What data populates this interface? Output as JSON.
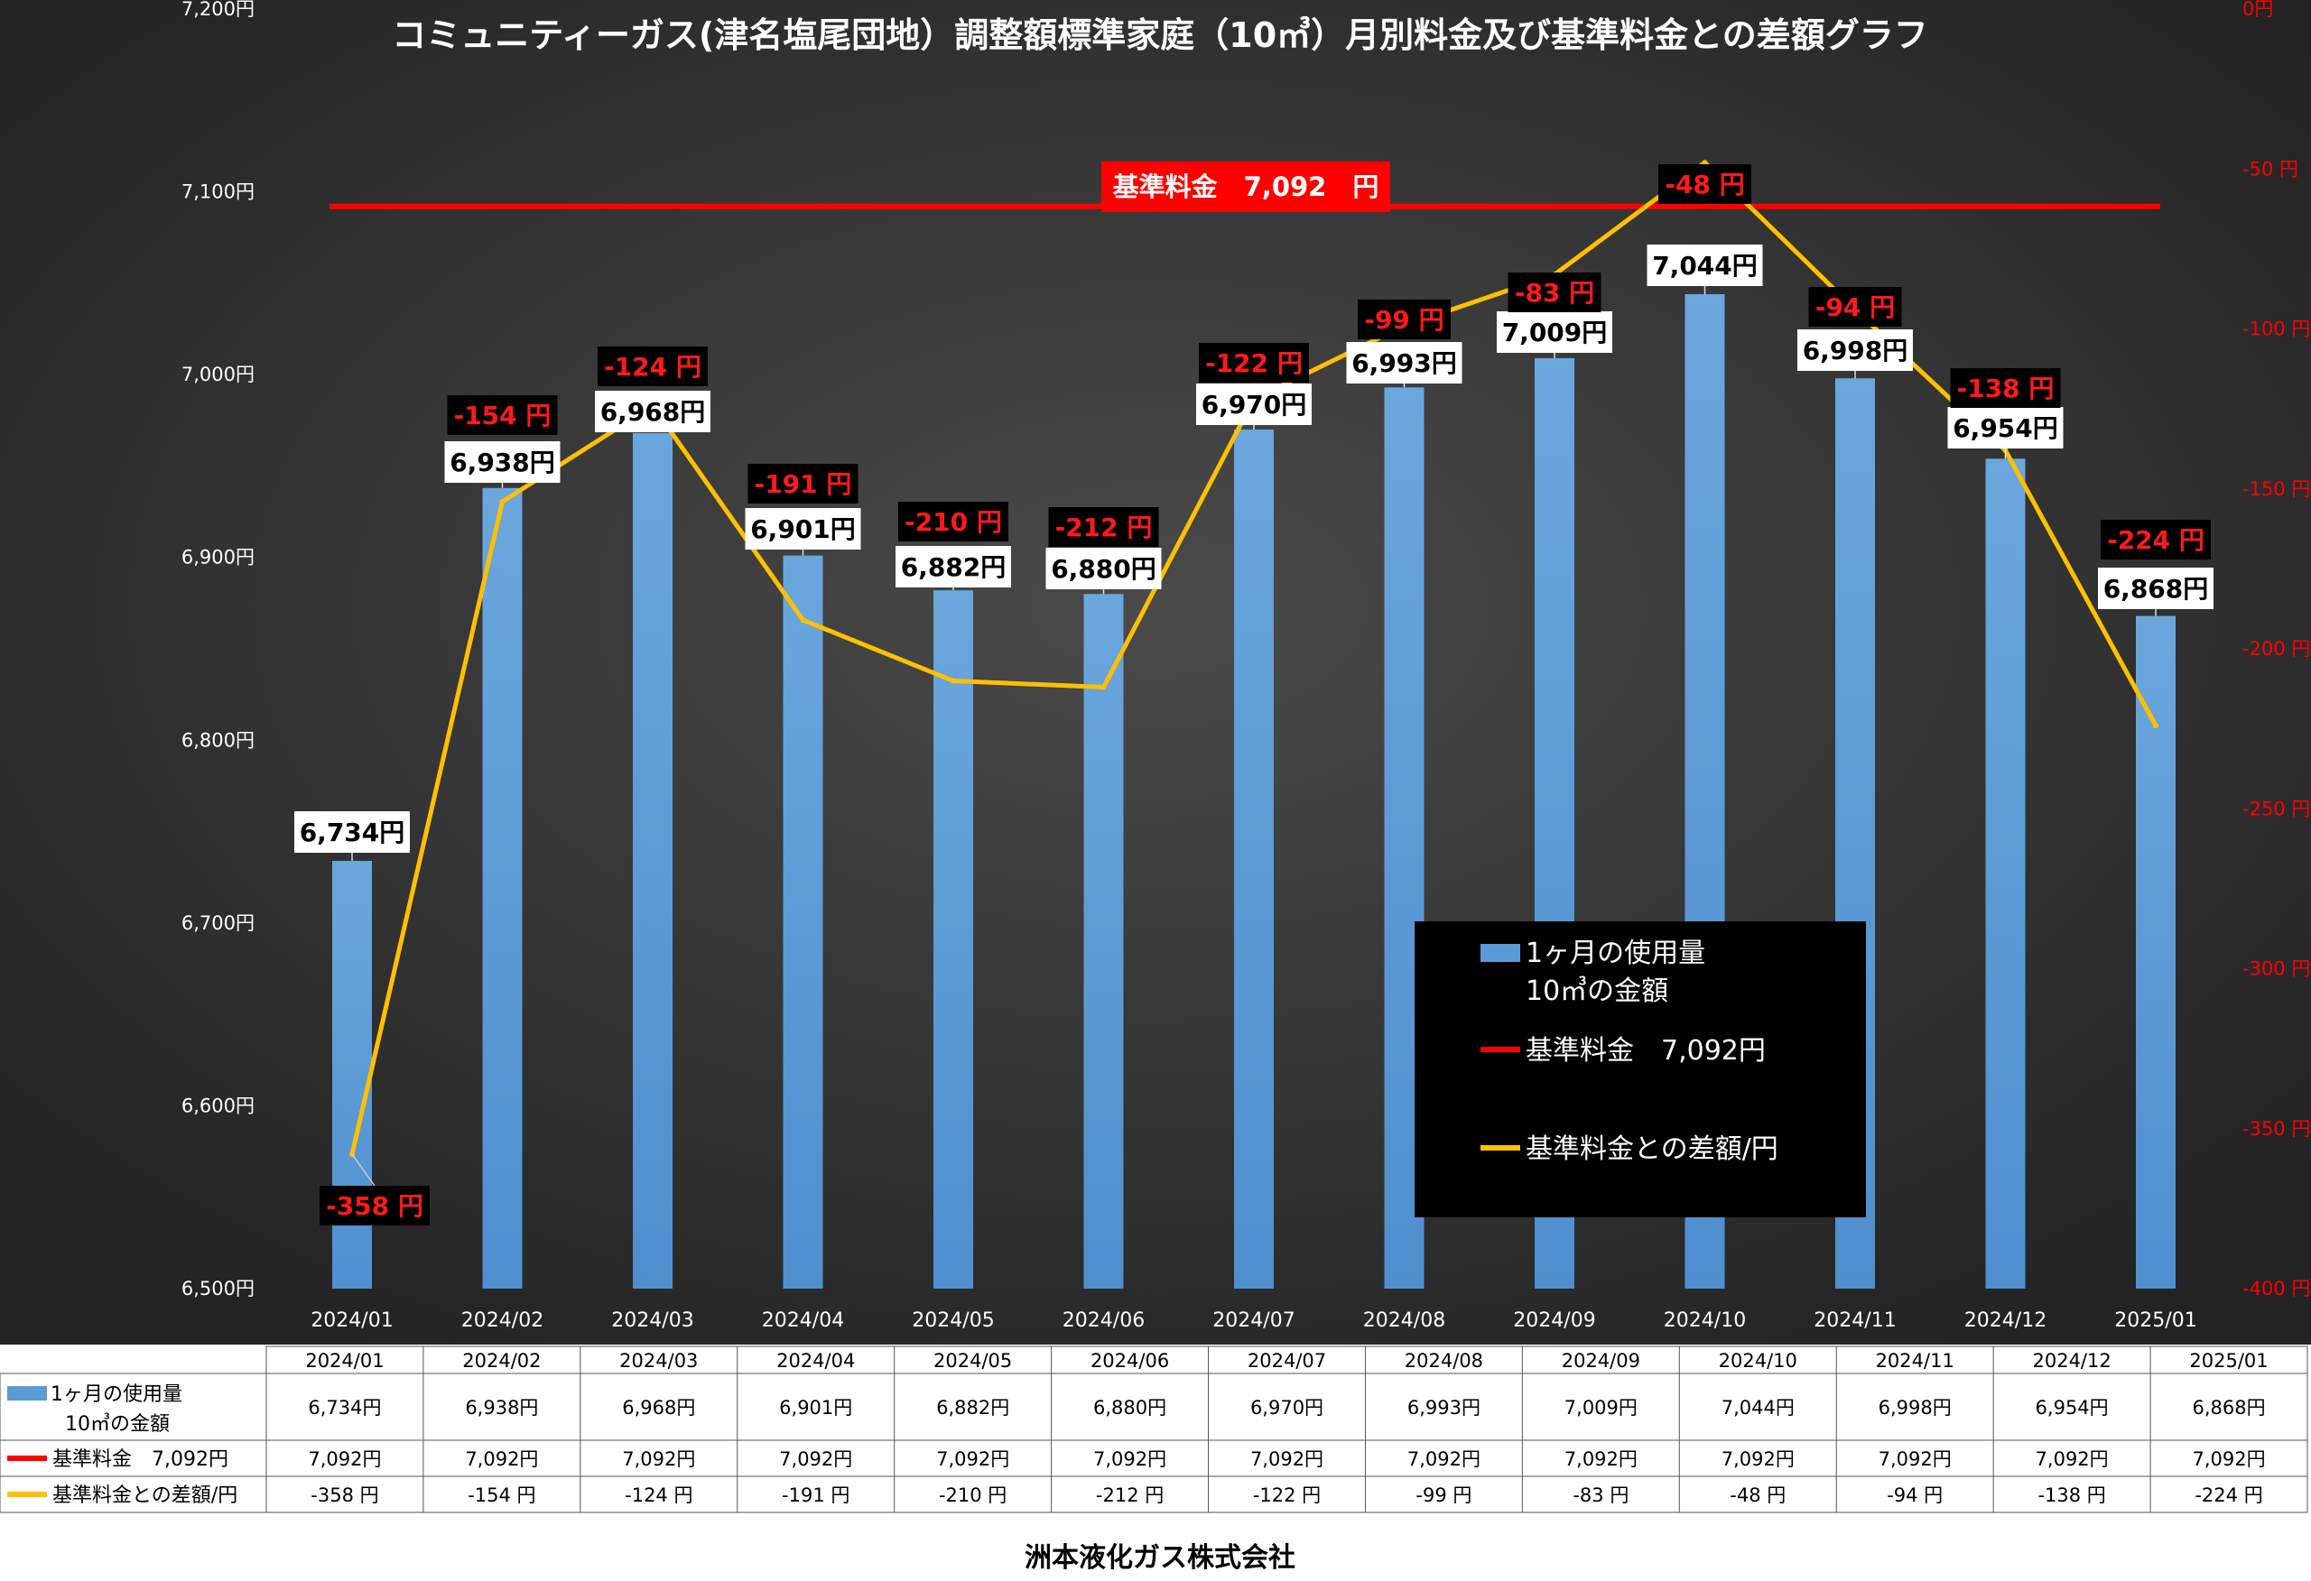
{
  "chart_data": {
    "type": "bar",
    "title": "コミュニティーガス(津名塩尾団地）調整額標準家庭（10㎥）月別料金及び基準料金との差額グラフ",
    "categories": [
      "2024/01",
      "2024/02",
      "2024/03",
      "2024/04",
      "2024/05",
      "2024/06",
      "2024/07",
      "2024/08",
      "2024/09",
      "2024/10",
      "2024/11",
      "2024/12",
      "2025/01"
    ],
    "series": [
      {
        "name": "1ヶ月の使用量 10㎥の金額",
        "type": "bar",
        "axis": "left",
        "color": "#5b9bd5",
        "values": [
          6734,
          6938,
          6968,
          6901,
          6882,
          6880,
          6970,
          6993,
          7009,
          7044,
          6998,
          6954,
          6868
        ],
        "labels": [
          "6,734円",
          "6,938円",
          "6,968円",
          "6,901円",
          "6,882円",
          "6,880円",
          "6,970円",
          "6,993円",
          "7,009円",
          "7,044円",
          "6,998円",
          "6,954円",
          "6,868円"
        ]
      },
      {
        "name": "基準料金 7,092円",
        "type": "line",
        "axis": "left",
        "color": "#ff0000",
        "values": [
          7092,
          7092,
          7092,
          7092,
          7092,
          7092,
          7092,
          7092,
          7092,
          7092,
          7092,
          7092,
          7092
        ]
      },
      {
        "name": "基準料金との差額/円",
        "type": "line",
        "axis": "right",
        "color": "#ffc000",
        "values": [
          -358,
          -154,
          -124,
          -191,
          -210,
          -212,
          -122,
          -99,
          -83,
          -48,
          -94,
          -138,
          -224
        ],
        "labels": [
          "-358 円",
          "-154 円",
          "-124 円",
          "-191 円",
          "-210 円",
          "-212 円",
          "-122 円",
          "-99 円",
          "-83 円",
          "-48 円",
          "-94 円",
          "-138 円",
          "-224 円"
        ]
      }
    ],
    "y_left": {
      "ylim": [
        6500,
        7200
      ],
      "ticks": [
        6500,
        6600,
        6700,
        6800,
        6900,
        7000,
        7100,
        7200
      ],
      "tick_labels": [
        "6,500円",
        "6,600円",
        "6,700円",
        "6,800円",
        "6,900円",
        "7,000円",
        "7,100円",
        "7,200円"
      ]
    },
    "y_right": {
      "ylim": [
        -400,
        0
      ],
      "ticks": [
        0,
        -50,
        -100,
        -150,
        -200,
        -250,
        -300,
        -350,
        -400
      ],
      "tick_labels": [
        "0円",
        "-50 円",
        "-100 円",
        "-150 円",
        "-200 円",
        "-250 円",
        "-300 円",
        "-350 円",
        "-400 円"
      ],
      "color": "#ff0000"
    },
    "reference_label": "基準料金　7,092　円",
    "legend": {
      "position": "bottom-right",
      "entries": [
        "1ヶ月の使用量",
        "10㎥の金額",
        "基準料金　7,092円",
        "基準料金との差額/円"
      ]
    },
    "grid": false,
    "background": "#2f2f2f"
  },
  "table": {
    "rows": [
      {
        "label_lines": [
          "1ヶ月の使用量",
          "10㎥の金額"
        ],
        "color": "#5b9bd5",
        "cells": [
          "6,734円",
          "6,938円",
          "6,968円",
          "6,901円",
          "6,882円",
          "6,880円",
          "6,970円",
          "6,993円",
          "7,009円",
          "7,044円",
          "6,998円",
          "6,954円",
          "6,868円"
        ]
      },
      {
        "label_lines": [
          "基準料金　7,092円"
        ],
        "color": "#ff0000",
        "cells": [
          "7,092円",
          "7,092円",
          "7,092円",
          "7,092円",
          "7,092円",
          "7,092円",
          "7,092円",
          "7,092円",
          "7,092円",
          "7,092円",
          "7,092円",
          "7,092円",
          "7,092円"
        ]
      },
      {
        "label_lines": [
          "基準料金との差額/円"
        ],
        "color": "#ffc000",
        "cells": [
          "-358 円",
          "-154 円",
          "-124 円",
          "-191 円",
          "-210 円",
          "-212 円",
          "-122 円",
          "-99 円",
          "-83 円",
          "-48 円",
          "-94 円",
          "-138 円",
          "-224 円"
        ]
      }
    ]
  },
  "footer": {
    "company": "洲本液化ガス株式会社"
  }
}
